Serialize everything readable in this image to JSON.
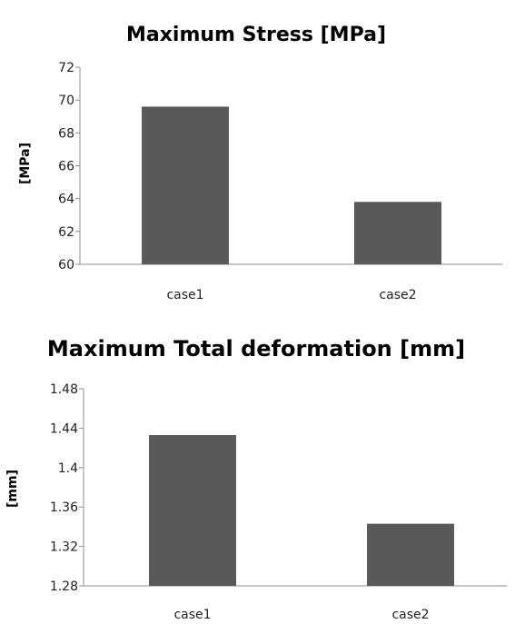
{
  "chart_data": [
    {
      "type": "bar",
      "title": "Maximum Stress [MPa]",
      "ylabel": "[MPa]",
      "xlabel": "",
      "categories": [
        "case1",
        "case2"
      ],
      "values": [
        69.6,
        63.8
      ],
      "ylim": [
        60,
        72
      ],
      "yticks": [
        "60",
        "62",
        "64",
        "66",
        "68",
        "70",
        "72"
      ],
      "bar_color": "#595959",
      "grid": false,
      "legend": "none"
    },
    {
      "type": "bar",
      "title": "Maximum Total deformation [mm]",
      "ylabel": "[mm]",
      "xlabel": "",
      "categories": [
        "case1",
        "case2"
      ],
      "values": [
        1.433,
        1.343
      ],
      "ylim": [
        1.28,
        1.48
      ],
      "yticks": [
        "1.28",
        "1.32",
        "1.36",
        "1.4",
        "1.44",
        "1.48"
      ],
      "bar_color": "#595959",
      "grid": false,
      "legend": "none"
    }
  ]
}
